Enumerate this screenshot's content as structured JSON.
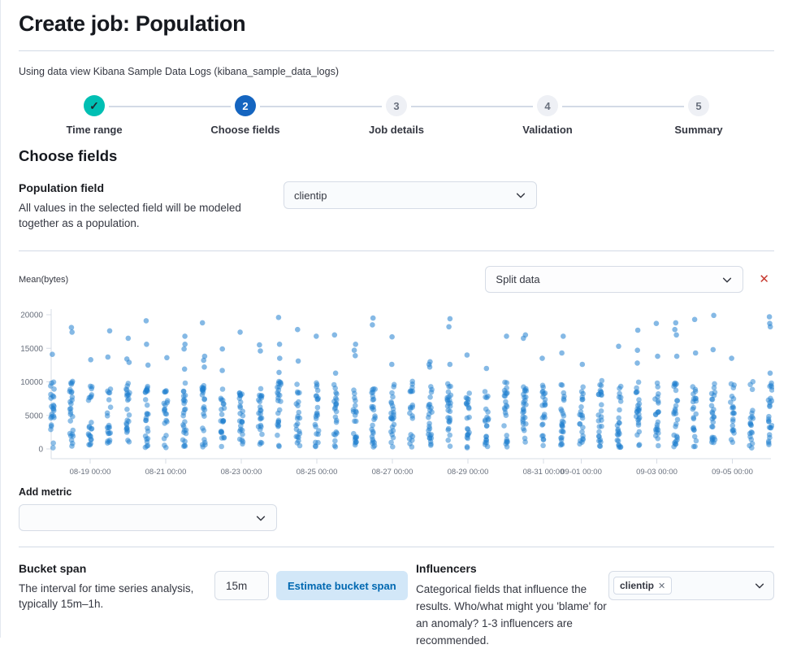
{
  "page": {
    "title": "Create job: Population",
    "subtitle": "Using data view Kibana Sample Data Logs (kibana_sample_data_logs)"
  },
  "stepper": {
    "steps": [
      {
        "label": "Time range",
        "status": "complete",
        "number": ""
      },
      {
        "label": "Choose fields",
        "status": "current",
        "number": "2"
      },
      {
        "label": "Job details",
        "status": "incomplete",
        "number": "3"
      },
      {
        "label": "Validation",
        "status": "incomplete",
        "number": "4"
      },
      {
        "label": "Summary",
        "status": "incomplete",
        "number": "5"
      }
    ]
  },
  "choose_fields": {
    "heading": "Choose fields"
  },
  "population_field": {
    "label": "Population field",
    "description": "All values in the selected field will be modeled together as a population.",
    "value": "clientip"
  },
  "metric_panel": {
    "metric_label": "Mean(bytes)",
    "split_select_placeholder": "Split data",
    "remove_label": "✕"
  },
  "add_metric": {
    "label": "Add metric",
    "value": ""
  },
  "bucket_span": {
    "heading": "Bucket span",
    "description": "The interval for time series analysis, typically 15m–1h.",
    "value": "15m",
    "button_label": "Estimate bucket span"
  },
  "influencers": {
    "heading": "Influencers",
    "description": "Categorical fields that influence the results. Who/what might you 'blame' for an anomaly? 1-3 influencers are recommended.",
    "selected": [
      "clientip"
    ],
    "tag_close": "✕"
  },
  "colors": {
    "step_complete_teal": "#00bfb3",
    "step_current_blue": "#1565c0",
    "dot_blue": "#2080cf",
    "danger_red": "#c7392f",
    "axis_line": "#d7dce5",
    "axis_text": "#69707d",
    "estimate_button_bg": "#d2e7f8",
    "estimate_button_text": "#0068b1"
  },
  "chart_data": {
    "type": "scatter",
    "title": "Mean(bytes)",
    "xlabel": "",
    "ylabel": "",
    "legend": "none",
    "grid": "off",
    "y_ticks": [
      0,
      5000,
      10000,
      15000,
      20000
    ],
    "ylim": [
      0,
      21300
    ],
    "x_start": "08-18 00:00",
    "bucket_interval_hours": 12,
    "x_tick_labels": [
      "08-19 00:00",
      "08-21 00:00",
      "08-23 00:00",
      "08-25 00:00",
      "08-27 00:00",
      "08-29 00:00",
      "08-31 00:00",
      "09-01 00:00",
      "09-03 00:00",
      "09-05 00:00"
    ],
    "x_tick_days": [
      1,
      3,
      5,
      7,
      9,
      11,
      13,
      14,
      16,
      18
    ],
    "buckets": [
      {
        "count": 24,
        "min": 150,
        "max": 10000,
        "outliers": [
          14100
        ]
      },
      {
        "count": 26,
        "min": 150,
        "max": 10100,
        "outliers": [
          18100,
          17400
        ]
      },
      {
        "count": 22,
        "min": 150,
        "max": 9900,
        "outliers": [
          13300
        ]
      },
      {
        "count": 20,
        "min": 150,
        "max": 9700,
        "outliers": [
          17600,
          13700
        ]
      },
      {
        "count": 24,
        "min": 150,
        "max": 10000,
        "outliers": [
          16500,
          13400,
          12900
        ]
      },
      {
        "count": 26,
        "min": 150,
        "max": 9900,
        "outliers": [
          19100,
          15600,
          12500
        ]
      },
      {
        "count": 20,
        "min": 150,
        "max": 9600,
        "outliers": [
          13600
        ]
      },
      {
        "count": 25,
        "min": 150,
        "max": 10100,
        "outliers": [
          16800,
          15600,
          14900,
          11900
        ]
      },
      {
        "count": 24,
        "min": 150,
        "max": 10200,
        "outliers": [
          18800,
          13800,
          13200,
          12200
        ]
      },
      {
        "count": 22,
        "min": 150,
        "max": 9800,
        "outliers": [
          14900,
          11700
        ]
      },
      {
        "count": 26,
        "min": 150,
        "max": 10000,
        "outliers": [
          17400
        ]
      },
      {
        "count": 24,
        "min": 150,
        "max": 9900,
        "outliers": [
          15500,
          14600
        ]
      },
      {
        "count": 25,
        "min": 150,
        "max": 10100,
        "outliers": [
          19600,
          15600,
          13500,
          11400
        ]
      },
      {
        "count": 22,
        "min": 150,
        "max": 9800,
        "outliers": [
          17800,
          13100
        ]
      },
      {
        "count": 24,
        "min": 150,
        "max": 10000,
        "outliers": [
          16800
        ]
      },
      {
        "count": 23,
        "min": 150,
        "max": 9700,
        "outliers": [
          17000,
          11300
        ]
      },
      {
        "count": 22,
        "min": 150,
        "max": 10000,
        "outliers": [
          15600,
          14700,
          13900
        ]
      },
      {
        "count": 26,
        "min": 150,
        "max": 10200,
        "outliers": [
          19500,
          18500
        ]
      },
      {
        "count": 24,
        "min": 150,
        "max": 9900,
        "outliers": [
          16700,
          12600
        ]
      },
      {
        "count": 20,
        "min": 150,
        "max": 10400,
        "outliers": []
      },
      {
        "count": 25,
        "min": 150,
        "max": 10000,
        "outliers": [
          13000,
          12600,
          12200
        ]
      },
      {
        "count": 26,
        "min": 150,
        "max": 9900,
        "outliers": [
          19400,
          18200,
          12600
        ]
      },
      {
        "count": 22,
        "min": 150,
        "max": 9800,
        "outliers": [
          14000
        ]
      },
      {
        "count": 21,
        "min": 150,
        "max": 9700,
        "outliers": [
          12000
        ]
      },
      {
        "count": 24,
        "min": 150,
        "max": 10000,
        "outliers": [
          16800
        ]
      },
      {
        "count": 26,
        "min": 150,
        "max": 10100,
        "outliers": [
          17000,
          16500
        ]
      },
      {
        "count": 23,
        "min": 150,
        "max": 9900,
        "outliers": [
          13500
        ]
      },
      {
        "count": 25,
        "min": 150,
        "max": 10000,
        "outliers": [
          16800,
          14300
        ]
      },
      {
        "count": 22,
        "min": 150,
        "max": 9800,
        "outliers": [
          12600
        ]
      },
      {
        "count": 26,
        "min": 150,
        "max": 10500,
        "outliers": []
      },
      {
        "count": 24,
        "min": 150,
        "max": 9900,
        "outliers": [
          15300
        ]
      },
      {
        "count": 25,
        "min": 150,
        "max": 10000,
        "outliers": [
          17700,
          14700,
          12800
        ]
      },
      {
        "count": 23,
        "min": 150,
        "max": 10100,
        "outliers": [
          18700,
          13800
        ]
      },
      {
        "count": 26,
        "min": 150,
        "max": 10000,
        "outliers": [
          18800,
          17800,
          17000,
          13800
        ]
      },
      {
        "count": 22,
        "min": 150,
        "max": 9900,
        "outliers": [
          19300,
          14300
        ]
      },
      {
        "count": 24,
        "min": 150,
        "max": 10000,
        "outliers": [
          19900,
          14800
        ]
      },
      {
        "count": 21,
        "min": 150,
        "max": 9800,
        "outliers": [
          13500
        ]
      },
      {
        "count": 20,
        "min": 150,
        "max": 10300,
        "outliers": []
      },
      {
        "count": 24,
        "min": 150,
        "max": 10000,
        "outliers": [
          19700,
          18700,
          18200,
          11300
        ]
      }
    ]
  }
}
